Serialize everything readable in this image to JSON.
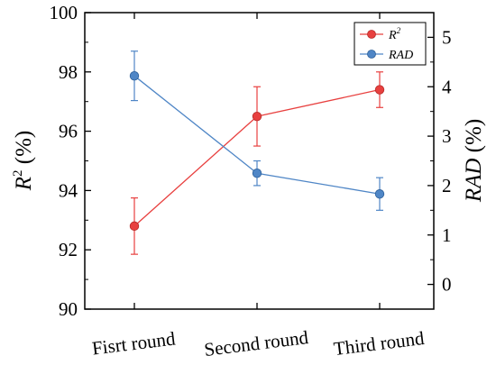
{
  "chart_data": {
    "type": "line",
    "categories": [
      "Fisrt round",
      "Second round",
      "Third round"
    ],
    "y_left": {
      "label_main": "R",
      "label_sup": "2",
      "label_unit": " (%)",
      "ylim": [
        90,
        100
      ],
      "ticks": [
        "90",
        "92",
        "94",
        "96",
        "98",
        "100"
      ]
    },
    "y_right": {
      "label_main": "RAD",
      "label_unit": " (%)",
      "ylim": [
        -0.5,
        5.5
      ],
      "ticks": [
        "0",
        "1",
        "2",
        "3",
        "4",
        "5"
      ]
    },
    "series": [
      {
        "name": "R",
        "name_sup": "2",
        "axis": "left",
        "color": "#e8403f",
        "values": [
          92.8,
          96.5,
          97.4
        ],
        "errors": [
          0.95,
          1.0,
          0.6
        ]
      },
      {
        "name": "RAD",
        "axis": "right",
        "color": "#4f86c6",
        "values": [
          4.22,
          2.25,
          1.83
        ],
        "errors": [
          0.5,
          0.25,
          0.33
        ]
      }
    ],
    "legend_position": "top-right",
    "grid": false
  }
}
